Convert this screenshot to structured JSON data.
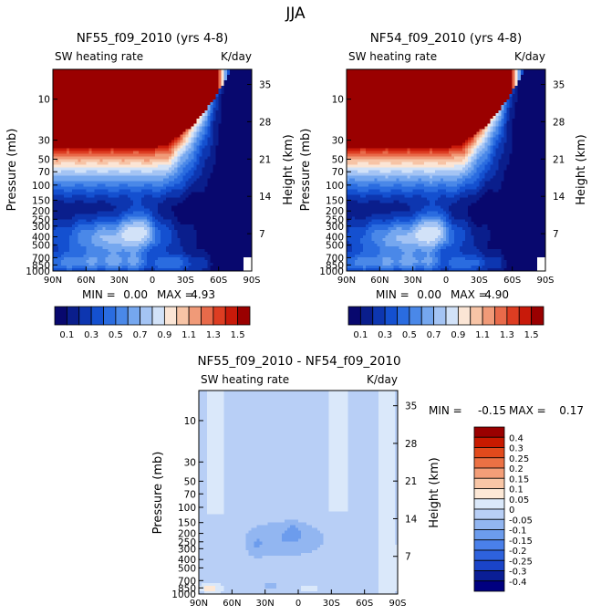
{
  "figure_title": "JJA",
  "colors": {
    "abs_scale": [
      "#08086e",
      "#0a1e8c",
      "#0d36b0",
      "#1450d0",
      "#2a6ce0",
      "#4a88e8",
      "#75a7ef",
      "#a4c4f4",
      "#d2e2f8",
      "#fbe5d5",
      "#f7c4a6",
      "#f09a78",
      "#e86a4a",
      "#dd3d22",
      "#c81a0a",
      "#9a0000"
    ],
    "diff_scale": [
      "#000080",
      "#0a1e96",
      "#1a44c8",
      "#2e62dd",
      "#4a80ea",
      "#6c9ced",
      "#92b6f1",
      "#b8cff6",
      "#dae8fa",
      "#fde8d6",
      "#f9c6a6",
      "#f49e78",
      "#ec7144",
      "#e24a1c",
      "#c81a00",
      "#9a0000"
    ]
  },
  "chart_data": [
    {
      "type": "heatmap",
      "id": "nf55",
      "title": "NF55_f09_2010 (yrs 4-8)",
      "subtitle_left": "SW heating rate",
      "subtitle_right": "K/day",
      "xlabel": "",
      "ylabel": "Pressure (mb)",
      "ylabel_right": "Height (km)",
      "x_ticks": [
        "90N",
        "60N",
        "30N",
        "0",
        "30S",
        "60S",
        "90S"
      ],
      "x_tick_values": [
        90,
        60,
        30,
        0,
        -30,
        -60,
        -90
      ],
      "y_ticks": [
        "10",
        "30",
        "50",
        "70",
        "100",
        "150",
        "200",
        "250",
        "300",
        "400",
        "500",
        "700",
        "850",
        "1000"
      ],
      "y_tick_values": [
        10,
        30,
        50,
        70,
        100,
        150,
        200,
        250,
        300,
        400,
        500,
        700,
        850,
        1000
      ],
      "y_right_ticks": [
        "35",
        "28",
        "21",
        "14",
        "7"
      ],
      "y_right_values": [
        35,
        28,
        21,
        14,
        7
      ],
      "ylim_mb": [
        1000,
        4.5
      ],
      "stats_min_label": "MIN =",
      "stats_min": "0.00",
      "stats_max_label": "MAX =",
      "stats_max": "4.93",
      "colorbar_labels": [
        "0.1",
        "0.3",
        "0.5",
        "0.7",
        "0.9",
        "1.1",
        "1.3",
        "1.5"
      ],
      "colorbar_levels": [
        0.1,
        0.2,
        0.3,
        0.4,
        0.5,
        0.6,
        0.7,
        0.8,
        0.9,
        1.0,
        1.1,
        1.2,
        1.3,
        1.4,
        1.5
      ]
    },
    {
      "type": "heatmap",
      "id": "nf54",
      "title": "NF54_f09_2010 (yrs 4-8)",
      "subtitle_left": "SW heating rate",
      "subtitle_right": "K/day",
      "xlabel": "",
      "ylabel": "Pressure (mb)",
      "ylabel_right": "Height (km)",
      "x_ticks": [
        "90N",
        "60N",
        "30N",
        "0",
        "30S",
        "60S",
        "90S"
      ],
      "x_tick_values": [
        90,
        60,
        30,
        0,
        -30,
        -60,
        -90
      ],
      "y_ticks": [
        "10",
        "30",
        "50",
        "70",
        "100",
        "150",
        "200",
        "250",
        "300",
        "400",
        "500",
        "700",
        "850",
        "1000"
      ],
      "y_tick_values": [
        10,
        30,
        50,
        70,
        100,
        150,
        200,
        250,
        300,
        400,
        500,
        700,
        850,
        1000
      ],
      "y_right_ticks": [
        "35",
        "28",
        "21",
        "14",
        "7"
      ],
      "y_right_values": [
        35,
        28,
        21,
        14,
        7
      ],
      "ylim_mb": [
        1000,
        4.5
      ],
      "stats_min_label": "MIN =",
      "stats_min": "0.00",
      "stats_max_label": "MAX =",
      "stats_max": "4.90",
      "colorbar_labels": [
        "0.1",
        "0.3",
        "0.5",
        "0.7",
        "0.9",
        "1.1",
        "1.3",
        "1.5"
      ],
      "colorbar_levels": [
        0.1,
        0.2,
        0.3,
        0.4,
        0.5,
        0.6,
        0.7,
        0.8,
        0.9,
        1.0,
        1.1,
        1.2,
        1.3,
        1.4,
        1.5
      ]
    },
    {
      "type": "heatmap",
      "id": "diff",
      "title": "NF55_f09_2010 - NF54_f09_2010",
      "subtitle_left": "SW heating rate",
      "subtitle_right": "K/day",
      "xlabel": "",
      "ylabel": "Pressure (mb)",
      "ylabel_right": "Height (km)",
      "x_ticks": [
        "90N",
        "60N",
        "30N",
        "0",
        "30S",
        "60S",
        "90S"
      ],
      "x_tick_values": [
        90,
        60,
        30,
        0,
        -30,
        -60,
        -90
      ],
      "y_ticks": [
        "10",
        "30",
        "50",
        "70",
        "100",
        "150",
        "200",
        "250",
        "300",
        "400",
        "500",
        "700",
        "850",
        "1000"
      ],
      "y_tick_values": [
        10,
        30,
        50,
        70,
        100,
        150,
        200,
        250,
        300,
        400,
        500,
        700,
        850,
        1000
      ],
      "y_right_ticks": [
        "35",
        "28",
        "21",
        "14",
        "7"
      ],
      "y_right_values": [
        35,
        28,
        21,
        14,
        7
      ],
      "ylim_mb": [
        1000,
        4.5
      ],
      "stats_min_label": "MIN =",
      "stats_min": "-0.15",
      "stats_max_label": "MAX =",
      "stats_max": "0.17",
      "colorbar_labels": [
        "0.4",
        "0.3",
        "0.25",
        "0.2",
        "0.15",
        "0.1",
        "0.05",
        "0",
        "-0.05",
        "-0.1",
        "-0.15",
        "-0.2",
        "-0.25",
        "-0.3",
        "-0.4"
      ],
      "colorbar_levels": [
        0.4,
        0.3,
        0.25,
        0.2,
        0.15,
        0.1,
        0.05,
        0,
        -0.05,
        -0.1,
        -0.15,
        -0.2,
        -0.25,
        -0.3,
        -0.4
      ]
    }
  ]
}
